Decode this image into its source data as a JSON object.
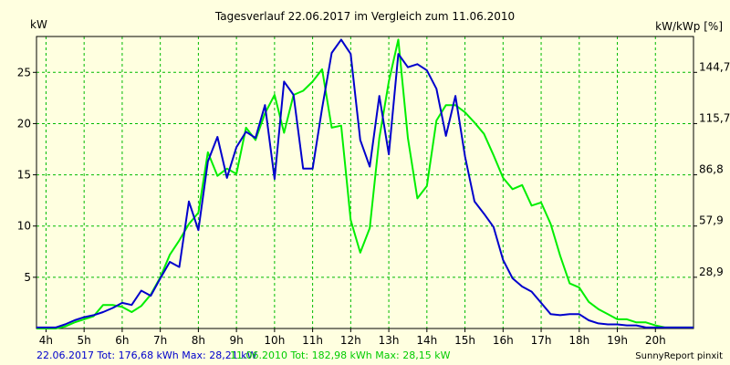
{
  "chart_data": {
    "type": "line",
    "title": "Tagesverlauf 22.06.2017 im Vergleich zum 11.06.2010",
    "ylabel": "kW",
    "ylabel_right": "kW/kWp [%]",
    "xlim": [
      3.75,
      21.0
    ],
    "ylim": [
      0,
      28.5
    ],
    "x_ticks": [
      4,
      5,
      6,
      7,
      8,
      9,
      10,
      11,
      12,
      13,
      14,
      15,
      16,
      17,
      18,
      19,
      20
    ],
    "x_tick_labels": [
      "4h",
      "5h",
      "6h",
      "7h",
      "8h",
      "9h",
      "10h",
      "11h",
      "12h",
      "13h",
      "14h",
      "15h",
      "16h",
      "17h",
      "18h",
      "19h",
      "20h"
    ],
    "y_ticks": [
      5,
      10,
      15,
      20,
      25
    ],
    "y_tick_labels": [
      "5",
      "10",
      "15",
      "20",
      "25"
    ],
    "y2_ticks": [
      5,
      10,
      15,
      20,
      25
    ],
    "y2_tick_labels": [
      "28,9",
      "57,9",
      "86,8",
      "115,7",
      "144,7"
    ],
    "grid": true,
    "series": [
      {
        "name": "22.06.2017",
        "color": "#0000CC",
        "x": [
          3.75,
          4.25,
          4.5,
          4.75,
          5.0,
          5.25,
          5.5,
          5.75,
          6.0,
          6.25,
          6.5,
          6.75,
          7.0,
          7.25,
          7.5,
          7.75,
          8.0,
          8.25,
          8.5,
          8.75,
          9.0,
          9.25,
          9.5,
          9.75,
          10.0,
          10.25,
          10.5,
          10.75,
          11.0,
          11.25,
          11.5,
          11.75,
          12.0,
          12.25,
          12.5,
          12.75,
          13.0,
          13.25,
          13.5,
          13.75,
          14.0,
          14.25,
          14.5,
          14.75,
          15.0,
          15.25,
          15.5,
          15.75,
          16.0,
          16.25,
          16.5,
          16.75,
          17.0,
          17.25,
          17.5,
          17.75,
          18.0,
          18.25,
          18.5,
          18.75,
          19.0,
          19.25,
          19.5,
          19.75,
          20.0,
          20.25,
          20.5,
          21.0
        ],
        "y": [
          0.1,
          0.1,
          0.4,
          0.8,
          1.1,
          1.3,
          1.6,
          2.0,
          2.5,
          2.3,
          3.7,
          3.2,
          4.9,
          6.5,
          6.0,
          12.4,
          9.6,
          16.3,
          18.7,
          14.7,
          17.7,
          19.2,
          18.6,
          21.8,
          14.6,
          24.1,
          22.8,
          15.6,
          15.6,
          21.5,
          26.9,
          28.2,
          26.8,
          18.4,
          15.8,
          22.7,
          17.0,
          26.8,
          25.5,
          25.8,
          25.2,
          23.4,
          18.8,
          22.7,
          16.8,
          12.4,
          11.2,
          9.9,
          6.7,
          4.9,
          4.1,
          3.6,
          2.5,
          1.4,
          1.3,
          1.4,
          1.4,
          0.8,
          0.5,
          0.4,
          0.4,
          0.3,
          0.3,
          0.1,
          0.1,
          0.1,
          0.1,
          0.1
        ]
      },
      {
        "name": "11.06.2010",
        "color": "#00EE00",
        "x": [
          3.75,
          4.25,
          4.5,
          4.75,
          5.0,
          5.25,
          5.5,
          5.75,
          6.0,
          6.25,
          6.5,
          6.75,
          7.0,
          7.25,
          7.5,
          7.75,
          8.0,
          8.25,
          8.5,
          8.75,
          9.0,
          9.25,
          9.5,
          9.75,
          10.0,
          10.25,
          10.5,
          10.75,
          11.0,
          11.25,
          11.5,
          11.75,
          12.0,
          12.25,
          12.5,
          12.75,
          13.0,
          13.25,
          13.5,
          13.75,
          14.0,
          14.25,
          14.5,
          14.75,
          15.0,
          15.25,
          15.5,
          15.75,
          16.0,
          16.25,
          16.5,
          16.75,
          17.0,
          17.25,
          17.5,
          17.75,
          18.0,
          18.25,
          18.5,
          18.75,
          19.0,
          19.25,
          19.5,
          19.75,
          20.0,
          20.25,
          20.5,
          21.0
        ],
        "y": [
          0.0,
          0.0,
          0.2,
          0.6,
          0.9,
          1.2,
          2.3,
          2.3,
          2.1,
          1.6,
          2.2,
          3.3,
          5.0,
          7.2,
          8.6,
          10.2,
          11.3,
          17.2,
          14.9,
          15.6,
          15.1,
          19.6,
          18.4,
          21.0,
          22.8,
          19.1,
          22.8,
          23.2,
          24.1,
          25.3,
          19.6,
          19.8,
          10.6,
          7.4,
          9.8,
          18.6,
          24.1,
          28.2,
          18.6,
          12.7,
          13.9,
          20.3,
          21.8,
          21.8,
          21.1,
          20.1,
          19.0,
          16.9,
          14.7,
          13.6,
          14.0,
          12.0,
          12.3,
          10.2,
          7.1,
          4.4,
          4.0,
          2.6,
          1.9,
          1.4,
          0.9,
          0.9,
          0.6,
          0.6,
          0.3,
          0.1,
          0.1,
          0.1
        ]
      }
    ],
    "annotations": {
      "series1_summary": "22.06.2017 Tot: 176,68 kWh Max: 28,21 kW",
      "series2_summary": "11.06.2010 Tot: 182,98 kWh Max: 28,15 kW"
    }
  },
  "footer": {
    "credit": "SunnyReport pinxit"
  },
  "colors": {
    "background": "#FFFFE0",
    "grid": "#00BB00",
    "axis": "#000000"
  }
}
